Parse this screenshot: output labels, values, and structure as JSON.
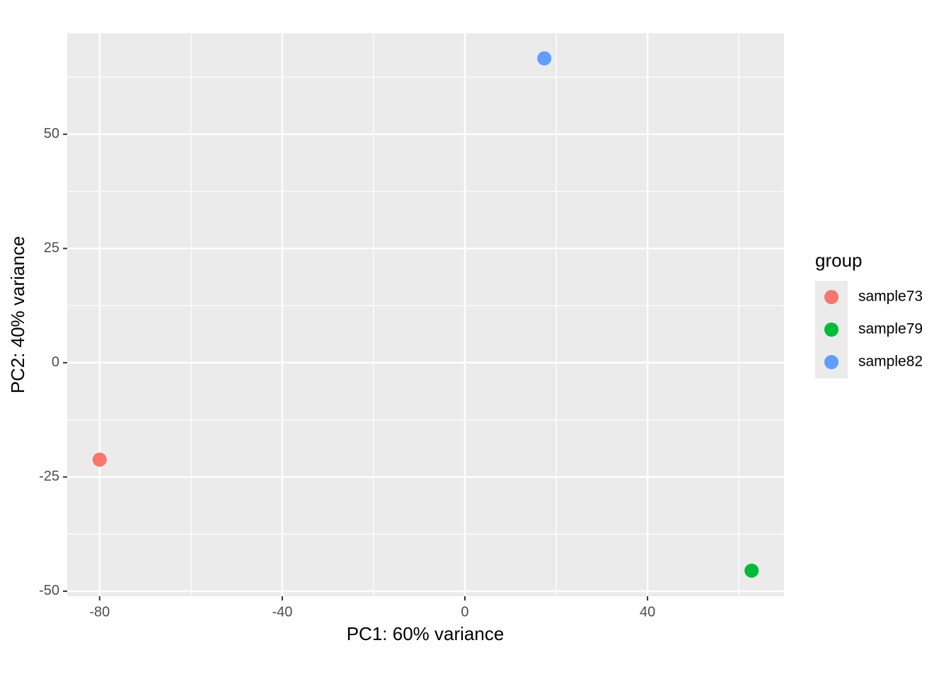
{
  "chart_data": {
    "type": "scatter",
    "xlabel": "PC1: 60% variance",
    "ylabel": "PC2: 40% variance",
    "legend_title": "group",
    "series": [
      {
        "name": "sample73",
        "color": "#f8766d",
        "x": [
          -80
        ],
        "values": [
          -21.2
        ]
      },
      {
        "name": "sample79",
        "color": "#00ba38",
        "x": [
          62.8
        ],
        "values": [
          -45.5
        ]
      },
      {
        "name": "sample82",
        "color": "#619cff",
        "x": [
          17.4
        ],
        "values": [
          66.6
        ]
      }
    ],
    "xlim": [
      -87.1,
      69.9
    ],
    "xticks": [
      -80,
      -40,
      0,
      40
    ],
    "ylim": [
      -51.1,
      72.1
    ],
    "yticks": [
      -50,
      -25,
      0,
      25,
      50
    ],
    "grid": true,
    "minor_grid": true,
    "legend": "right"
  }
}
